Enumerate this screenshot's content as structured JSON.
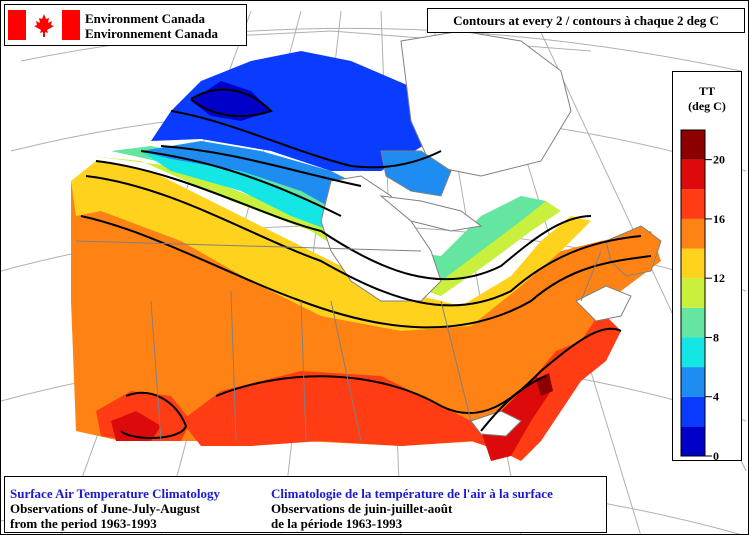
{
  "header": {
    "agency_en": "Environment Canada",
    "agency_fr": "Environnement Canada"
  },
  "contour_note": "Contours at every 2 / contours à chaque 2 deg C",
  "legend": {
    "title_line1": "TT",
    "title_line2": "(deg C)",
    "min": 0,
    "max": 22,
    "tick_labels": [
      "20",
      "16",
      "12",
      "8",
      "4",
      "0"
    ],
    "tick_values": [
      20,
      16,
      12,
      8,
      4,
      0
    ],
    "bands": [
      {
        "from": 0,
        "to": 2,
        "color": "#0000c8"
      },
      {
        "from": 2,
        "to": 4,
        "color": "#0a3cff"
      },
      {
        "from": 4,
        "to": 6,
        "color": "#1e8cf0"
      },
      {
        "from": 6,
        "to": 8,
        "color": "#14e6e6"
      },
      {
        "from": 8,
        "to": 10,
        "color": "#64e6a0"
      },
      {
        "from": 10,
        "to": 12,
        "color": "#c8f03c"
      },
      {
        "from": 12,
        "to": 14,
        "color": "#ffd21e"
      },
      {
        "from": 14,
        "to": 16,
        "color": "#ff8214"
      },
      {
        "from": 16,
        "to": 18,
        "color": "#ff3c14"
      },
      {
        "from": 18,
        "to": 20,
        "color": "#dc0a0a"
      },
      {
        "from": 20,
        "to": 22,
        "color": "#8c0000"
      }
    ]
  },
  "info": {
    "en_title": "Surface Air Temperature Climatology",
    "en_line1": "Observations of June-July-August",
    "en_line2": "from the period 1963-1993",
    "fr_title": "Climatologie de la température de l'air à la surface",
    "fr_line1": "Observations de juin-juillet-août",
    "fr_line2": "de la période 1963-1993"
  },
  "colors": {
    "flag_red": "#ff0000",
    "title_blue": "#1a1ac8",
    "water": "#ffffff",
    "contour": "#000000",
    "boundary": "#808080"
  }
}
